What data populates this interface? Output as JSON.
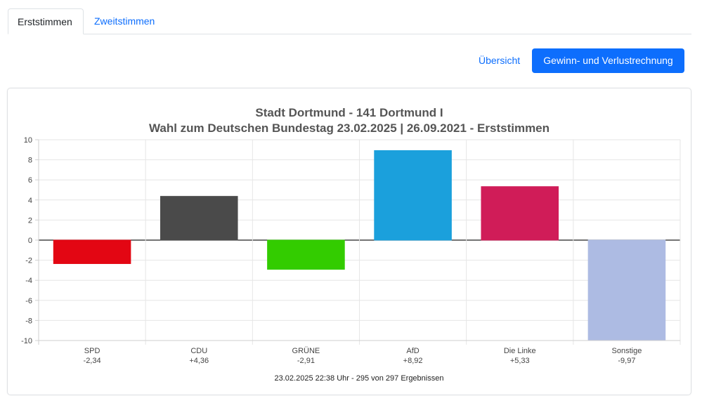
{
  "tabs": [
    {
      "label": "Erststimmen",
      "active": true
    },
    {
      "label": "Zweitstimmen",
      "active": false
    }
  ],
  "actions": {
    "overview_label": "Übersicht",
    "gain_loss_label": "Gewinn- und Verlustrechnung"
  },
  "colors": {
    "link": "#0d6efd",
    "button": "#0d6efd"
  },
  "chart_data": {
    "type": "bar",
    "title": "Stadt Dortmund - 141 Dortmund I",
    "subtitle": "Wahl zum Deutschen Bundestag 23.02.2025  | 26.09.2021 - Erststimmen",
    "categories": [
      "SPD",
      "CDU",
      "GRÜNE",
      "AfD",
      "Die Linke",
      "Sonstige"
    ],
    "values": [
      -2.34,
      4.36,
      -2.91,
      8.92,
      5.33,
      -9.97
    ],
    "value_labels": [
      "-2,34",
      "+4,36",
      "-2,91",
      "+8,92",
      "+5,33",
      "-9,97"
    ],
    "colors": [
      "#e30613",
      "#4a4a4a",
      "#33cc00",
      "#1ba0dc",
      "#d01c58",
      "#adbbe3"
    ],
    "ylim": [
      -10,
      10
    ],
    "yticks": [
      10,
      8,
      6,
      4,
      2,
      0,
      -2,
      -4,
      -6,
      -8,
      -10
    ],
    "grid": true,
    "footer": "23.02.2025 22:38 Uhr - 295 von 297 Ergebnissen"
  }
}
